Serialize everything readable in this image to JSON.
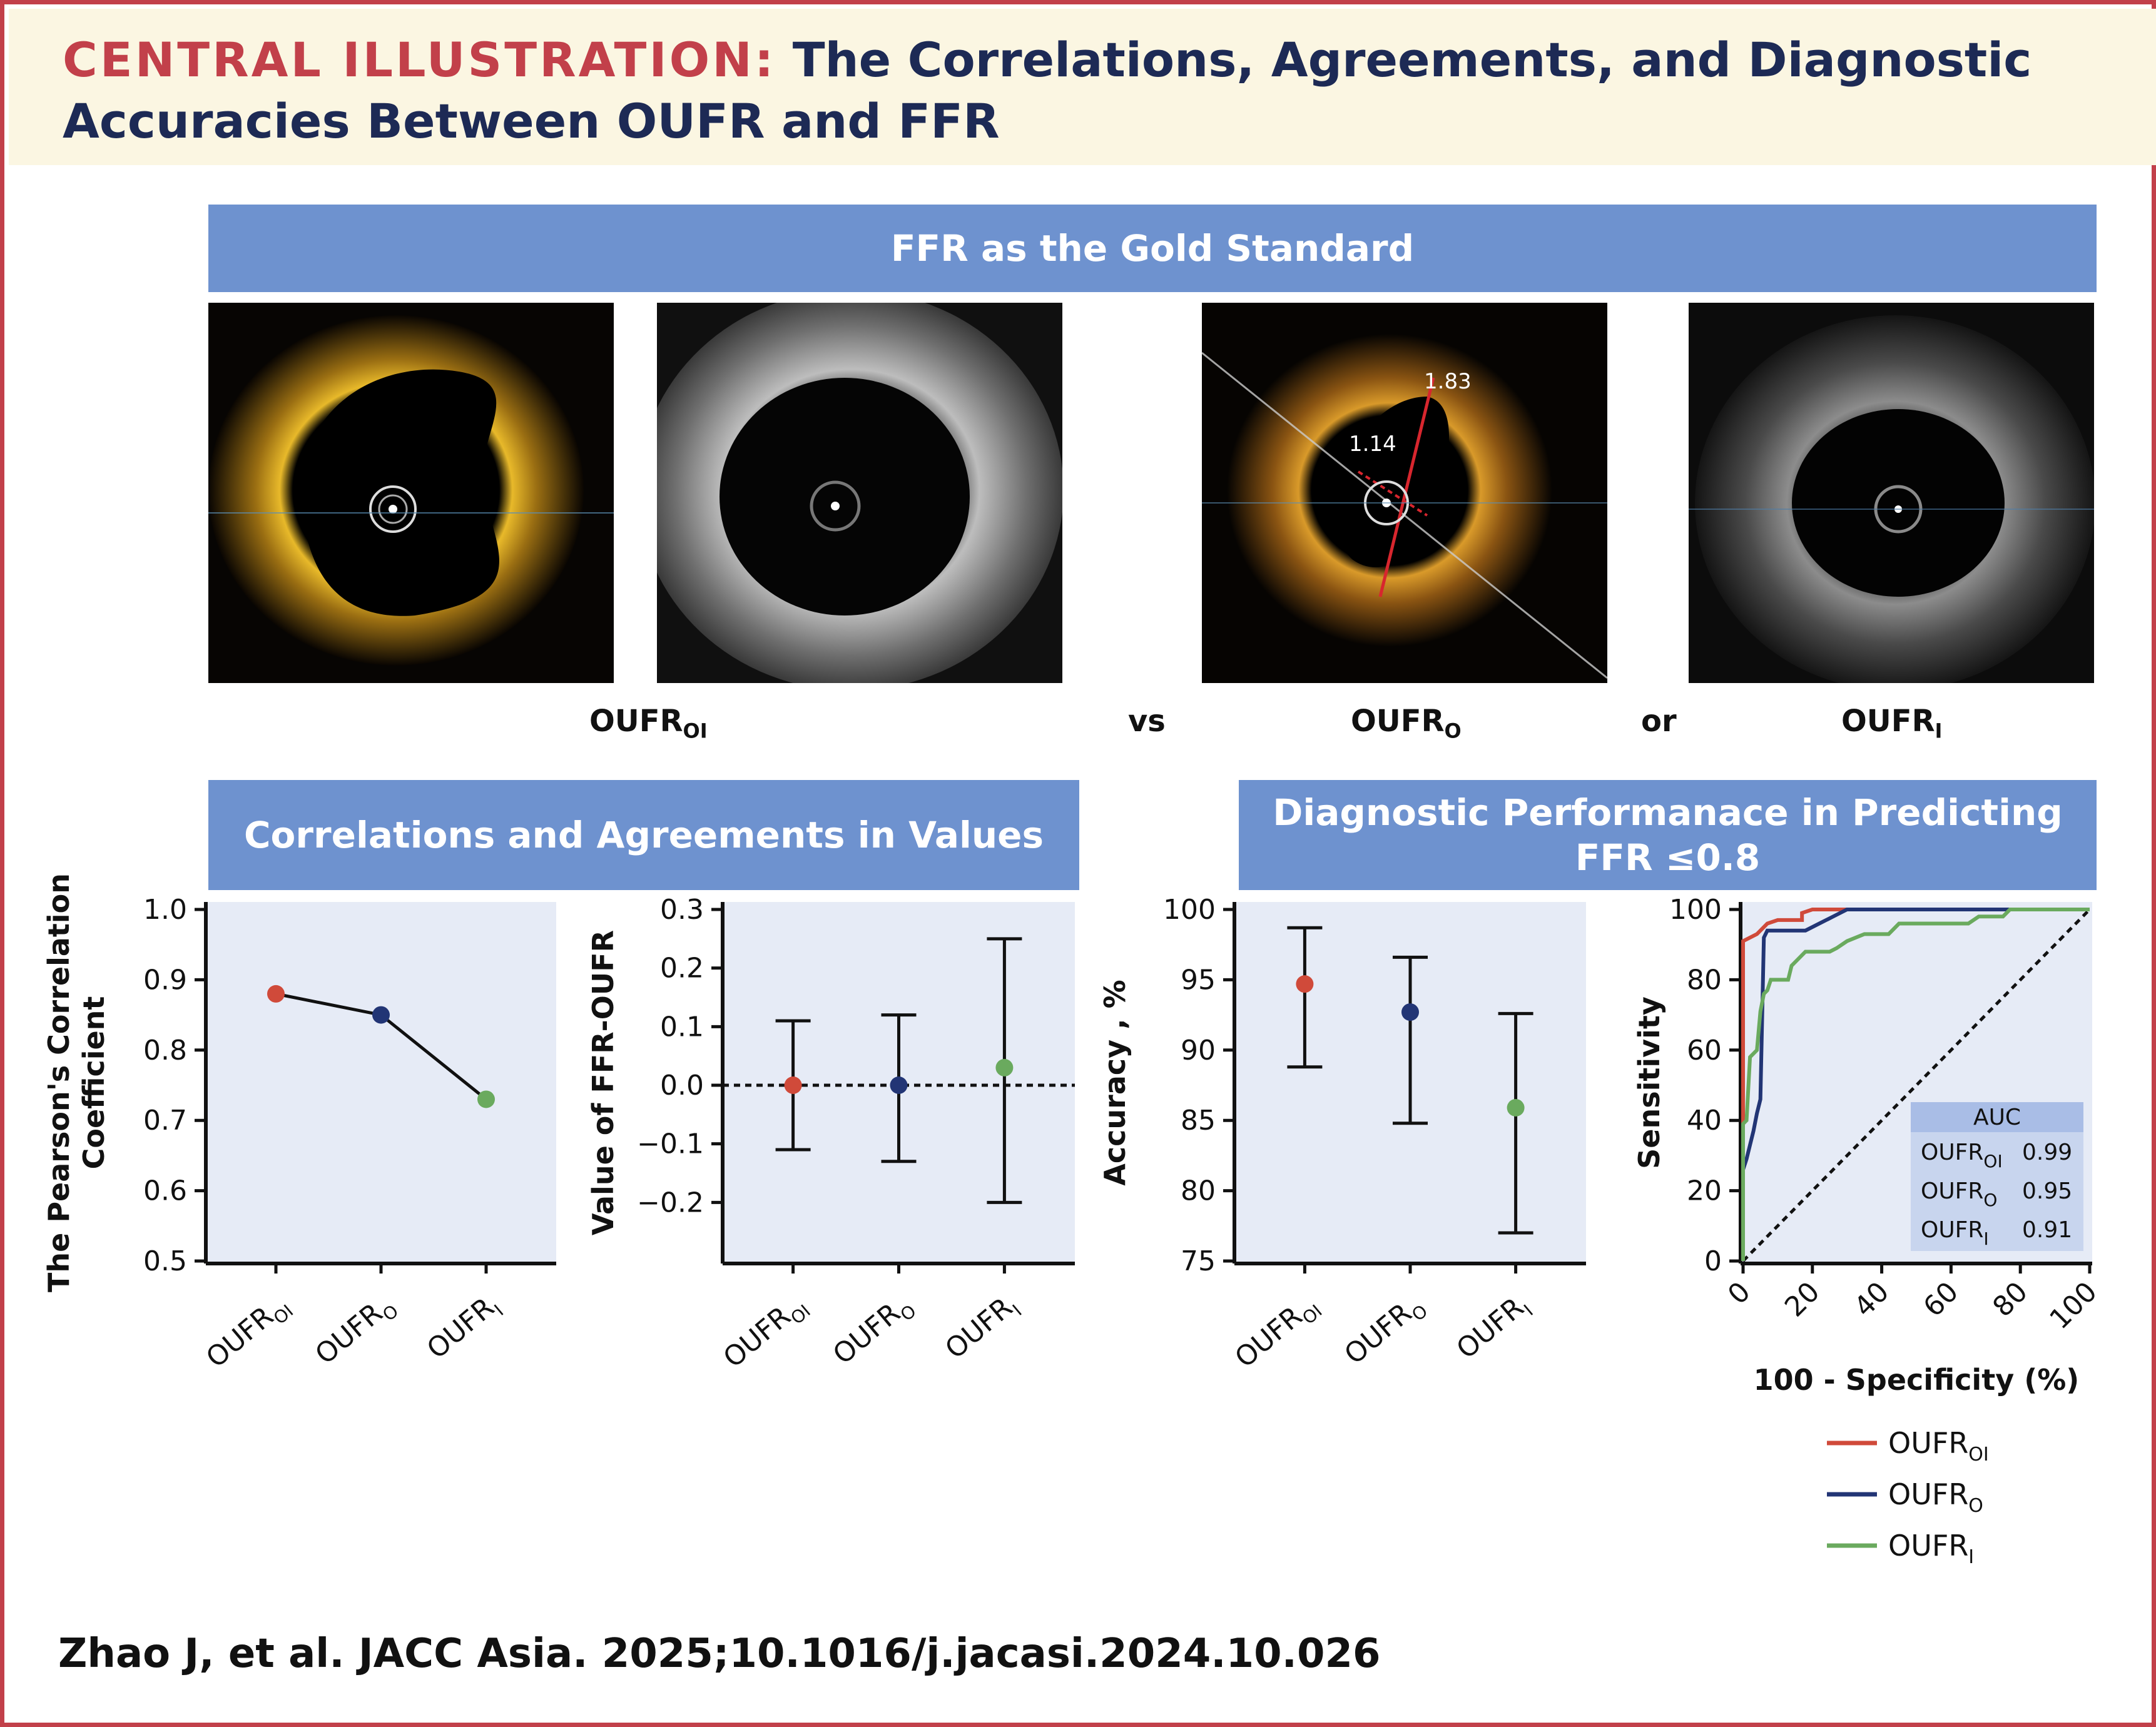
{
  "header": {
    "prefix": "CENTRAL ILLUSTRATION:",
    "title_line1": "The Correlations, Agreements, and Diagnostic",
    "title_line2": "Accuracies Between OUFR and FFR"
  },
  "banners": {
    "gold_standard": "FFR as the Gold Standard",
    "correlations": "Correlations and Agreements in Values",
    "diagnostic_line1": "Diagnostic Performanace in Predicting",
    "diagnostic_line2": "FFR ≤0.8"
  },
  "images": {
    "measure_a": "1.83",
    "measure_b": "1.14"
  },
  "comparison": {
    "label1_main": "OUFR",
    "label1_sub": "OI",
    "vs": "vs",
    "label2_main": "OUFR",
    "label2_sub": "O",
    "or": "or",
    "label3_main": "OUFR",
    "label3_sub": "I"
  },
  "chart_data": [
    {
      "id": "correlation",
      "type": "line",
      "ylabel_line1": "The Pearson's Correlation",
      "ylabel_line2": "Coefficient",
      "ylim": [
        0.5,
        1.0
      ],
      "yticks": [
        "1.0",
        "0.9",
        "0.8",
        "0.7",
        "0.6",
        "0.5"
      ],
      "categories": [
        {
          "main": "OUFR",
          "sub": "OI"
        },
        {
          "main": "OUFR",
          "sub": "O"
        },
        {
          "main": "OUFR",
          "sub": "I"
        }
      ],
      "values": [
        0.88,
        0.85,
        0.73
      ],
      "colors": [
        "#d04a3a",
        "#223575",
        "#6aaa5e"
      ]
    },
    {
      "id": "agreement",
      "type": "errorbar",
      "ylabel": "Value of FFR-OUFR",
      "ylim": [
        -0.3,
        0.3
      ],
      "yticks": [
        "0.3",
        "0.2",
        "0.1",
        "0.0",
        "−0.1",
        "−0.2"
      ],
      "categories": [
        {
          "main": "OUFR",
          "sub": "OI"
        },
        {
          "main": "OUFR",
          "sub": "O"
        },
        {
          "main": "OUFR",
          "sub": "I"
        }
      ],
      "means": [
        0.0,
        0.0,
        0.03
      ],
      "lower": [
        -0.11,
        -0.13,
        -0.2
      ],
      "upper": [
        0.11,
        0.12,
        0.25
      ],
      "reference_line": 0.0,
      "colors": [
        "#d04a3a",
        "#223575",
        "#6aaa5e"
      ]
    },
    {
      "id": "accuracy",
      "type": "errorbar",
      "ylabel": "Accuracy , %",
      "ylim": [
        75,
        100
      ],
      "yticks": [
        "100",
        "95",
        "90",
        "85",
        "80",
        "75"
      ],
      "categories": [
        {
          "main": "OUFR",
          "sub": "OI"
        },
        {
          "main": "OUFR",
          "sub": "O"
        },
        {
          "main": "OUFR",
          "sub": "I"
        }
      ],
      "means": [
        94.7,
        92.7,
        85.9
      ],
      "lower": [
        88.8,
        84.8,
        77.0
      ],
      "upper": [
        98.7,
        96.6,
        92.6
      ],
      "colors": [
        "#d04a3a",
        "#223575",
        "#6aaa5e"
      ]
    },
    {
      "id": "roc",
      "type": "line",
      "xlabel": "100 - Specificity (%)",
      "ylabel": "Sensitivity",
      "xlim": [
        0,
        100
      ],
      "ylim": [
        0,
        100
      ],
      "xticks": [
        "0",
        "20",
        "40",
        "60",
        "80",
        "100"
      ],
      "yticks": [
        "100",
        "80",
        "60",
        "40",
        "20",
        "0"
      ],
      "series": [
        {
          "name": "OUFR",
          "sub": "OI",
          "color": "#d04a3a",
          "points": [
            [
              0,
              0
            ],
            [
              0,
              91
            ],
            [
              2,
              92
            ],
            [
              4,
              93
            ],
            [
              6,
              95
            ],
            [
              7,
              96
            ],
            [
              10,
              97
            ],
            [
              13,
              97
            ],
            [
              16,
              97
            ],
            [
              17,
              97
            ],
            [
              17,
              99
            ],
            [
              20,
              100
            ],
            [
              100,
              100
            ]
          ]
        },
        {
          "name": "OUFR",
          "sub": "O",
          "color": "#223575",
          "points": [
            [
              0,
              0
            ],
            [
              0,
              26
            ],
            [
              1,
              29
            ],
            [
              2,
              33
            ],
            [
              3,
              37
            ],
            [
              4,
              42
            ],
            [
              5,
              46
            ],
            [
              6,
              92
            ],
            [
              7,
              94
            ],
            [
              10,
              94
            ],
            [
              14,
              94
            ],
            [
              17,
              94
            ],
            [
              18,
              94
            ],
            [
              22,
              96
            ],
            [
              26,
              98
            ],
            [
              30,
              100
            ],
            [
              100,
              100
            ]
          ]
        },
        {
          "name": "OUFR",
          "sub": "I",
          "color": "#6aaa5e",
          "points": [
            [
              0,
              0
            ],
            [
              0,
              39
            ],
            [
              1,
              40
            ],
            [
              2,
              58
            ],
            [
              3,
              59
            ],
            [
              4,
              60
            ],
            [
              5,
              71
            ],
            [
              6,
              76
            ],
            [
              7,
              77
            ],
            [
              8,
              80
            ],
            [
              13,
              80
            ],
            [
              14,
              84
            ],
            [
              16,
              86
            ],
            [
              18,
              88
            ],
            [
              25,
              88
            ],
            [
              27,
              89
            ],
            [
              30,
              91
            ],
            [
              35,
              93
            ],
            [
              40,
              93
            ],
            [
              42,
              93
            ],
            [
              45,
              96
            ],
            [
              50,
              96
            ],
            [
              55,
              96
            ],
            [
              60,
              96
            ],
            [
              65,
              96
            ],
            [
              68,
              98
            ],
            [
              70,
              98
            ],
            [
              75,
              98
            ],
            [
              77,
              100
            ],
            [
              100,
              100
            ]
          ]
        }
      ],
      "diagonal": true,
      "auc_table": {
        "header": "AUC",
        "rows": [
          {
            "name": "OUFR",
            "sub": "OI",
            "value": "0.99"
          },
          {
            "name": "OUFR",
            "sub": "O",
            "value": "0.95"
          },
          {
            "name": "OUFR",
            "sub": "I",
            "value": "0.91"
          }
        ]
      },
      "legend_position": "bottom"
    }
  ],
  "citation": "Zhao J, et al. JACC Asia. 2025;10.1016/j.jacasi.2024.10.026"
}
